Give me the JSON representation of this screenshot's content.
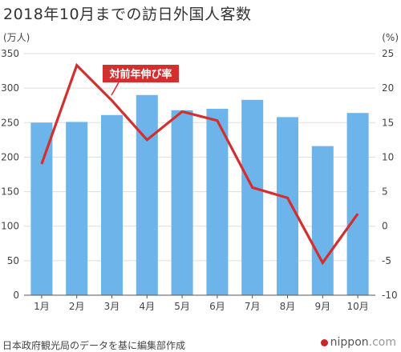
{
  "header": {
    "title": "2018年10月までの訪日外国人客数"
  },
  "footer": {
    "source": "日本政府観光局のデータを基に編集部作成",
    "brand_main": "nippon",
    "brand_suffix": ".com"
  },
  "colors": {
    "bar": "#6db4ea",
    "line": "#d32f2f",
    "grid": "#dddddd",
    "axis": "#555555",
    "annotation_bg": "#d32f2f"
  },
  "chart_data": {
    "type": "bar",
    "categories": [
      "1月",
      "2月",
      "3月",
      "4月",
      "5月",
      "6月",
      "7月",
      "8月",
      "9月",
      "10月"
    ],
    "series": [
      {
        "type": "bar",
        "axis": "left",
        "values": [
          250,
          251,
          261,
          290,
          268,
          270,
          283,
          258,
          216,
          264
        ]
      },
      {
        "type": "line",
        "axis": "right",
        "name": "対前年伸び率",
        "values": [
          9.0,
          23.3,
          18.2,
          12.5,
          16.6,
          15.3,
          5.6,
          4.1,
          -5.3,
          1.8
        ]
      }
    ],
    "y_left": {
      "label": "(万人)",
      "ylim": [
        0,
        350
      ],
      "ticks": [
        0,
        50,
        100,
        150,
        200,
        250,
        300,
        350
      ]
    },
    "y_right": {
      "label": "(%)",
      "ylim": [
        -10,
        25
      ],
      "ticks": [
        -10,
        -5,
        0,
        5,
        10,
        15,
        20,
        25
      ]
    },
    "annotations": [
      {
        "text": "対前年伸び率",
        "series": 1
      }
    ],
    "grid": true,
    "legend": "none"
  }
}
